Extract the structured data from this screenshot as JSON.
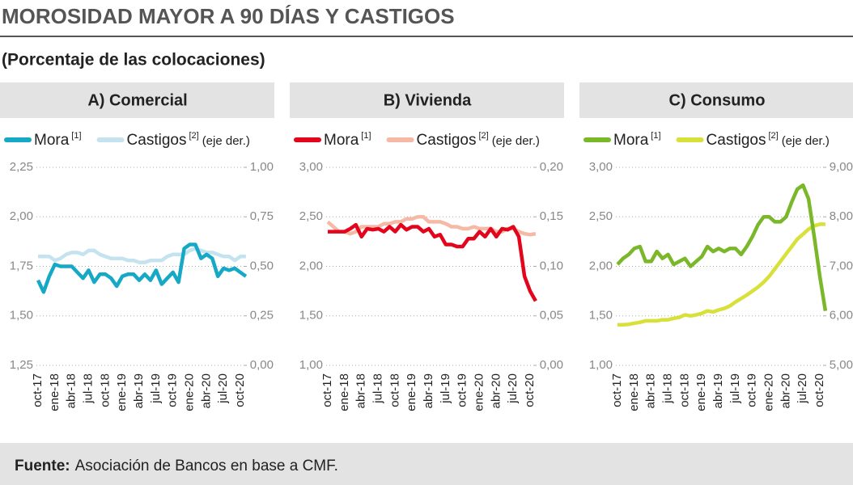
{
  "title": "MOROSIDAD MAYOR A 90 DÍAS Y CASTIGOS",
  "subtitle": "(Porcentaje de las colocaciones)",
  "source_label": "Fuente:",
  "source_text": "Asociación de Bancos en base a CMF.",
  "chart_data": [
    {
      "type": "line",
      "title": "A) Comercial",
      "categories": [
        "oct-17",
        null,
        null,
        "ene-18",
        null,
        null,
        "abr-18",
        null,
        null,
        "jul-18",
        null,
        null,
        "oct-18",
        null,
        null,
        "ene-19",
        null,
        null,
        "abr-19",
        null,
        null,
        "jul-19",
        null,
        null,
        "oct-19",
        null,
        null,
        "ene-20",
        null,
        null,
        "abr-20",
        null,
        null,
        "jul-20",
        null,
        null,
        "oct-20",
        null
      ],
      "series": [
        {
          "name": "Mora",
          "note": "[1]",
          "color": "#16a9c5",
          "values": [
            1.68,
            1.62,
            1.7,
            1.76,
            1.75,
            1.75,
            1.75,
            1.72,
            1.69,
            1.73,
            1.67,
            1.71,
            1.71,
            1.69,
            1.65,
            1.7,
            1.71,
            1.71,
            1.68,
            1.71,
            1.68,
            1.73,
            1.66,
            1.69,
            1.72,
            1.67,
            1.84,
            1.86,
            1.86,
            1.79,
            1.81,
            1.79,
            1.7,
            1.74,
            1.73,
            1.74,
            1.72,
            1.7
          ]
        },
        {
          "name": "Castigos",
          "note": "[2]",
          "axis_note": "(eje der.)",
          "color": "#c4e3ee",
          "axis": "y2",
          "values": [
            0.55,
            0.55,
            0.55,
            0.53,
            0.54,
            0.56,
            0.57,
            0.57,
            0.56,
            0.58,
            0.58,
            0.56,
            0.55,
            0.54,
            0.54,
            0.54,
            0.53,
            0.53,
            0.52,
            0.52,
            0.53,
            0.53,
            0.53,
            0.55,
            0.56,
            0.56,
            0.56,
            0.58,
            0.59,
            0.58,
            0.57,
            0.57,
            0.56,
            0.55,
            0.55,
            0.53,
            0.55,
            0.55
          ]
        }
      ],
      "ylim": [
        1.25,
        2.25
      ],
      "yticks": [
        {
          "value": 1.25,
          "label": "1,25"
        },
        {
          "value": 1.5,
          "label": "1,50"
        },
        {
          "value": 1.75,
          "label": "1,75"
        },
        {
          "value": 2,
          "label": "2,00"
        },
        {
          "value": 2.25,
          "label": "2,25"
        }
      ],
      "y2lim": [
        0,
        1
      ],
      "y2ticks": [
        {
          "value": 0,
          "label": "0,00"
        },
        {
          "value": 0.25,
          "label": "0,25"
        },
        {
          "value": 0.5,
          "label": "0,50"
        },
        {
          "value": 0.75,
          "label": "0,75"
        },
        {
          "value": 1,
          "label": "1,00"
        }
      ],
      "grid": true
    },
    {
      "type": "line",
      "title": "B) Vivienda",
      "categories": [
        "oct-17",
        null,
        null,
        "ene-18",
        null,
        null,
        "abr-18",
        null,
        null,
        "jul-18",
        null,
        null,
        "oct-18",
        null,
        null,
        "ene-19",
        null,
        null,
        "abr-19",
        null,
        null,
        "jul-19",
        null,
        null,
        "oct-19",
        null,
        null,
        "ene-20",
        null,
        null,
        "abr-20",
        null,
        null,
        "jul-20",
        null,
        null,
        "oct-20",
        null
      ],
      "series": [
        {
          "name": "Mora",
          "note": "[1]",
          "color": "#e3051b",
          "values": [
            2.35,
            2.35,
            2.35,
            2.35,
            2.38,
            2.42,
            2.3,
            2.38,
            2.37,
            2.38,
            2.35,
            2.4,
            2.35,
            2.42,
            2.37,
            2.4,
            2.4,
            2.35,
            2.38,
            2.3,
            2.32,
            2.22,
            2.22,
            2.2,
            2.2,
            2.28,
            2.28,
            2.35,
            2.3,
            2.38,
            2.3,
            2.38,
            2.37,
            2.4,
            2.3,
            1.9,
            1.75,
            1.65
          ]
        },
        {
          "name": "Castigos",
          "note": "[2]",
          "axis_note": "(eje der.)",
          "color": "#f6b9a5",
          "axis": "y2",
          "values": [
            0.145,
            0.14,
            0.135,
            0.135,
            0.133,
            0.135,
            0.14,
            0.14,
            0.14,
            0.14,
            0.143,
            0.143,
            0.145,
            0.145,
            0.148,
            0.148,
            0.15,
            0.15,
            0.145,
            0.145,
            0.145,
            0.143,
            0.14,
            0.14,
            0.138,
            0.138,
            0.14,
            0.138,
            0.138,
            0.138,
            0.135,
            0.135,
            0.138,
            0.138,
            0.135,
            0.133,
            0.132,
            0.133
          ]
        }
      ],
      "ylim": [
        1,
        3
      ],
      "yticks": [
        {
          "value": 1,
          "label": "1,00"
        },
        {
          "value": 1.5,
          "label": "1,50"
        },
        {
          "value": 2,
          "label": "2,00"
        },
        {
          "value": 2.5,
          "label": "2,50"
        },
        {
          "value": 3,
          "label": "3,00"
        }
      ],
      "y2lim": [
        0,
        0.2
      ],
      "y2ticks": [
        {
          "value": 0,
          "label": "0,00"
        },
        {
          "value": 0.05,
          "label": "0,05"
        },
        {
          "value": 0.1,
          "label": "0,10"
        },
        {
          "value": 0.15,
          "label": "0,15"
        },
        {
          "value": 0.2,
          "label": "0,20"
        }
      ],
      "grid": true
    },
    {
      "type": "line",
      "title": "C) Consumo",
      "categories": [
        "oct-17",
        null,
        null,
        "ene-18",
        null,
        null,
        "abr-18",
        null,
        null,
        "jul-18",
        null,
        null,
        "oct-18",
        null,
        null,
        "ene-19",
        null,
        null,
        "abr-19",
        null,
        null,
        "jul-19",
        null,
        null,
        "oct-19",
        null,
        null,
        "ene-20",
        null,
        null,
        "abr-20",
        null,
        null,
        "jul-20",
        null,
        null,
        "oct-20",
        null
      ],
      "series": [
        {
          "name": "Mora",
          "note": "[1]",
          "color": "#7ab829",
          "values": [
            2.02,
            2.08,
            2.12,
            2.18,
            2.2,
            2.05,
            2.05,
            2.15,
            2.08,
            2.12,
            2.02,
            2.05,
            2.08,
            2.0,
            2.05,
            2.1,
            2.2,
            2.15,
            2.18,
            2.15,
            2.18,
            2.18,
            2.12,
            2.2,
            2.3,
            2.42,
            2.5,
            2.5,
            2.45,
            2.45,
            2.5,
            2.65,
            2.78,
            2.82,
            2.68,
            2.3,
            1.9,
            1.55
          ]
        },
        {
          "name": "Castigos",
          "note": "[2]",
          "axis_note": "(eje der.)",
          "color": "#d8e03a",
          "axis": "y2",
          "values": [
            5.82,
            5.82,
            5.83,
            5.85,
            5.87,
            5.9,
            5.9,
            5.9,
            5.92,
            5.92,
            5.95,
            5.97,
            6.02,
            6.0,
            6.02,
            6.05,
            6.1,
            6.08,
            6.12,
            6.15,
            6.2,
            6.28,
            6.35,
            6.42,
            6.5,
            6.58,
            6.68,
            6.8,
            6.95,
            7.1,
            7.25,
            7.4,
            7.55,
            7.65,
            7.75,
            7.82,
            7.85,
            7.85
          ]
        }
      ],
      "ylim": [
        1,
        3
      ],
      "yticks": [
        {
          "value": 1,
          "label": "1,00"
        },
        {
          "value": 1.5,
          "label": "1,50"
        },
        {
          "value": 2,
          "label": "2,00"
        },
        {
          "value": 2.5,
          "label": "2,50"
        },
        {
          "value": 3,
          "label": "3,00"
        }
      ],
      "y2lim": [
        5,
        9
      ],
      "y2ticks": [
        {
          "value": 5,
          "label": "5,00"
        },
        {
          "value": 6,
          "label": "6,00"
        },
        {
          "value": 7,
          "label": "7,00"
        },
        {
          "value": 8,
          "label": "8,00"
        },
        {
          "value": 9,
          "label": "9,00"
        }
      ],
      "grid": true
    }
  ]
}
